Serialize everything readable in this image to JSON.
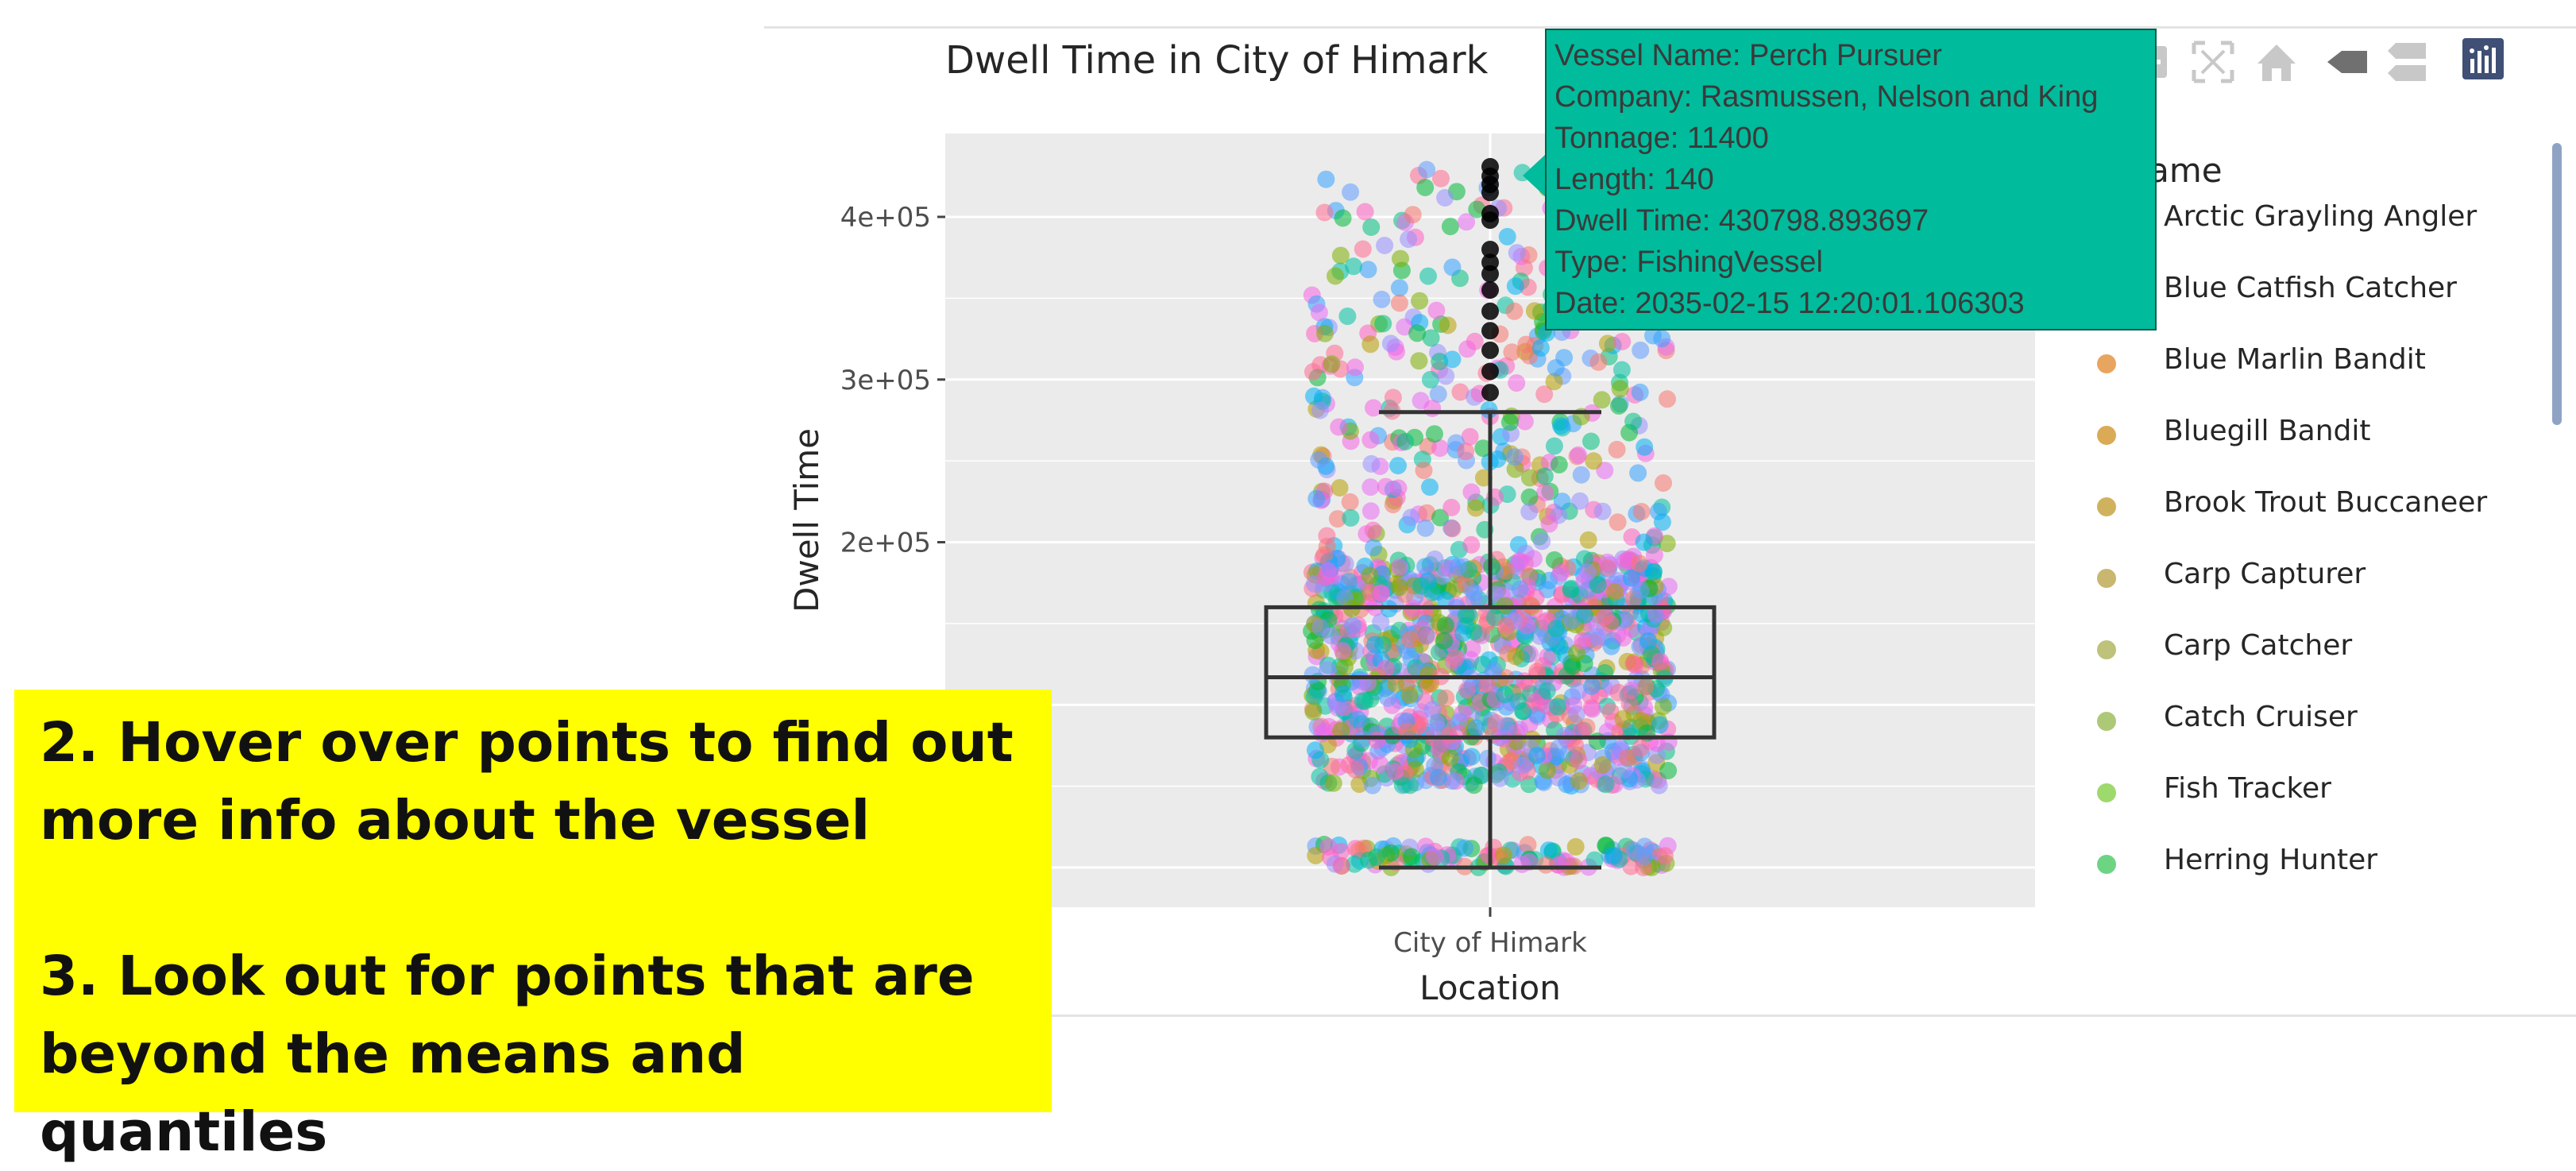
{
  "chart_data": {
    "type": "scatter",
    "title": "Dwell Time in City of Himark",
    "xlabel": "Location",
    "ylabel": "Dwell Time",
    "categories": [
      "City of Himark"
    ],
    "y_ticks": [
      "4e+05",
      "3e+05",
      "2e+05"
    ],
    "ylim": [
      0,
      450000
    ],
    "grid": true,
    "legend_position": "right",
    "boxplot": {
      "category": "City of Himark",
      "min": 0,
      "q1": 80000,
      "median": 117000,
      "q3": 160000,
      "upper_whisker": 280000
    },
    "legend_title": "el_name",
    "series": [
      {
        "name": "Arctic Grayling Angler",
        "color": "#F8766D"
      },
      {
        "name": "Blue Catfish Catcher",
        "color": "#F17E4D"
      },
      {
        "name": "Blue Marlin Bandit",
        "color": "#E8A55F"
      },
      {
        "name": "Bluegill Bandit",
        "color": "#DBAA56"
      },
      {
        "name": "Brook Trout Buccaneer",
        "color": "#D0B25E"
      },
      {
        "name": "Carp Capturer",
        "color": "#C9B66F"
      },
      {
        "name": "Carp Catcher",
        "color": "#BEC27A"
      },
      {
        "name": "Catch Cruiser",
        "color": "#ADC877"
      },
      {
        "name": "Fish Tracker",
        "color": "#9ED96E"
      },
      {
        "name": "Herring Hunter",
        "color": "#6DD483"
      }
    ],
    "outliers_black": [
      430798,
      425000,
      420000,
      415000,
      402000,
      398000,
      380000,
      372000,
      365000,
      355000,
      342000,
      330000,
      318000,
      305000,
      292000
    ]
  },
  "tooltip": {
    "vessel_name": "Vessel Name: Perch Pursuer",
    "company": "Company: Rasmussen, Nelson and King",
    "tonnage": "Tonnage: 11400",
    "length": "Length: 140",
    "dwell_time": "Dwell Time: 430798.893697",
    "type": "Type:  FishingVessel",
    "date": "Date:  2035-02-15 12:20:01.106303",
    "background": "#00bb9c"
  },
  "callout": {
    "step2": "2. Hover over points to find out more info about the vessel",
    "step3": "3. Look out for points that are beyond the means and quantiles",
    "background": "#ffff00"
  },
  "modebar": {
    "icons": [
      "zoom-out-icon",
      "autoscale-icon",
      "home-icon",
      "spike-lines-icon",
      "compare-hover-icon",
      "plotly-logo-icon"
    ]
  }
}
